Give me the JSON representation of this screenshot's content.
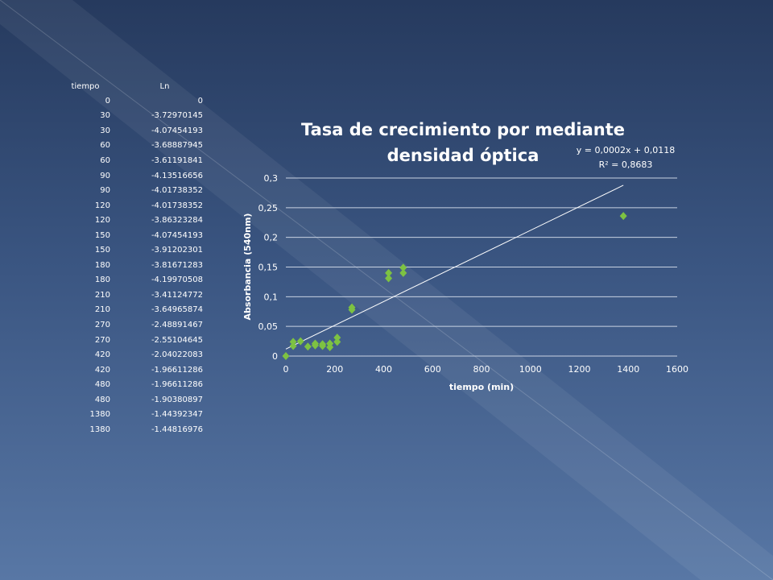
{
  "table": {
    "headers": [
      "tiempo",
      "Ln"
    ],
    "rows": [
      [
        "0",
        "0"
      ],
      [
        "30",
        "-3.72970145"
      ],
      [
        "30",
        "-4.07454193"
      ],
      [
        "60",
        "-3.68887945"
      ],
      [
        "60",
        "-3.61191841"
      ],
      [
        "90",
        "-4.13516656"
      ],
      [
        "90",
        "-4.01738352"
      ],
      [
        "120",
        "-4.01738352"
      ],
      [
        "120",
        "-3.86323284"
      ],
      [
        "150",
        "-4.07454193"
      ],
      [
        "150",
        "-3.91202301"
      ],
      [
        "180",
        "-3.81671283"
      ],
      [
        "180",
        "-4.19970508"
      ],
      [
        "210",
        "-3.41124772"
      ],
      [
        "210",
        "-3.64965874"
      ],
      [
        "270",
        "-2.48891467"
      ],
      [
        "270",
        "-2.55104645"
      ],
      [
        "420",
        "-2.04022083"
      ],
      [
        "420",
        "-1.96611286"
      ],
      [
        "480",
        "-1.96611286"
      ],
      [
        "480",
        "-1.90380897"
      ],
      [
        "1380",
        "-1.44392347"
      ],
      [
        "1380",
        "-1.44816976"
      ]
    ]
  },
  "chart_data": {
    "type": "scatter",
    "title_lines": [
      "Tasa de crecimiento por  mediante",
      "densidad óptica"
    ],
    "xlabel": "tiempo (min)",
    "ylabel": "Absorbancia (540nm)",
    "xlim": [
      0,
      1600
    ],
    "ylim": [
      0,
      0.3
    ],
    "x_ticks": [
      "0",
      "200",
      "400",
      "600",
      "800",
      "1000",
      "1200",
      "1400",
      "1600"
    ],
    "y_ticks": [
      "0",
      "0,05",
      "0,1",
      "0,15",
      "0,2",
      "0,25",
      "0,3"
    ],
    "grid": true,
    "marker_color": "#7dc242",
    "trendline_color": "#ffffff",
    "x": [
      0,
      30,
      30,
      60,
      90,
      120,
      120,
      150,
      150,
      180,
      180,
      210,
      210,
      270,
      270,
      420,
      420,
      480,
      480,
      1380
    ],
    "y": [
      0,
      0.024,
      0.017,
      0.025,
      0.016,
      0.018,
      0.021,
      0.017,
      0.02,
      0.015,
      0.021,
      0.024,
      0.031,
      0.078,
      0.082,
      0.131,
      0.14,
      0.14,
      0.149,
      0.236
    ],
    "trendline": {
      "slope": 0.0002,
      "intercept": 0.0118,
      "x_range": [
        0,
        1380
      ],
      "equation": "y = 0,0002x + 0,0118",
      "r2": "R² = 0,8683"
    }
  }
}
